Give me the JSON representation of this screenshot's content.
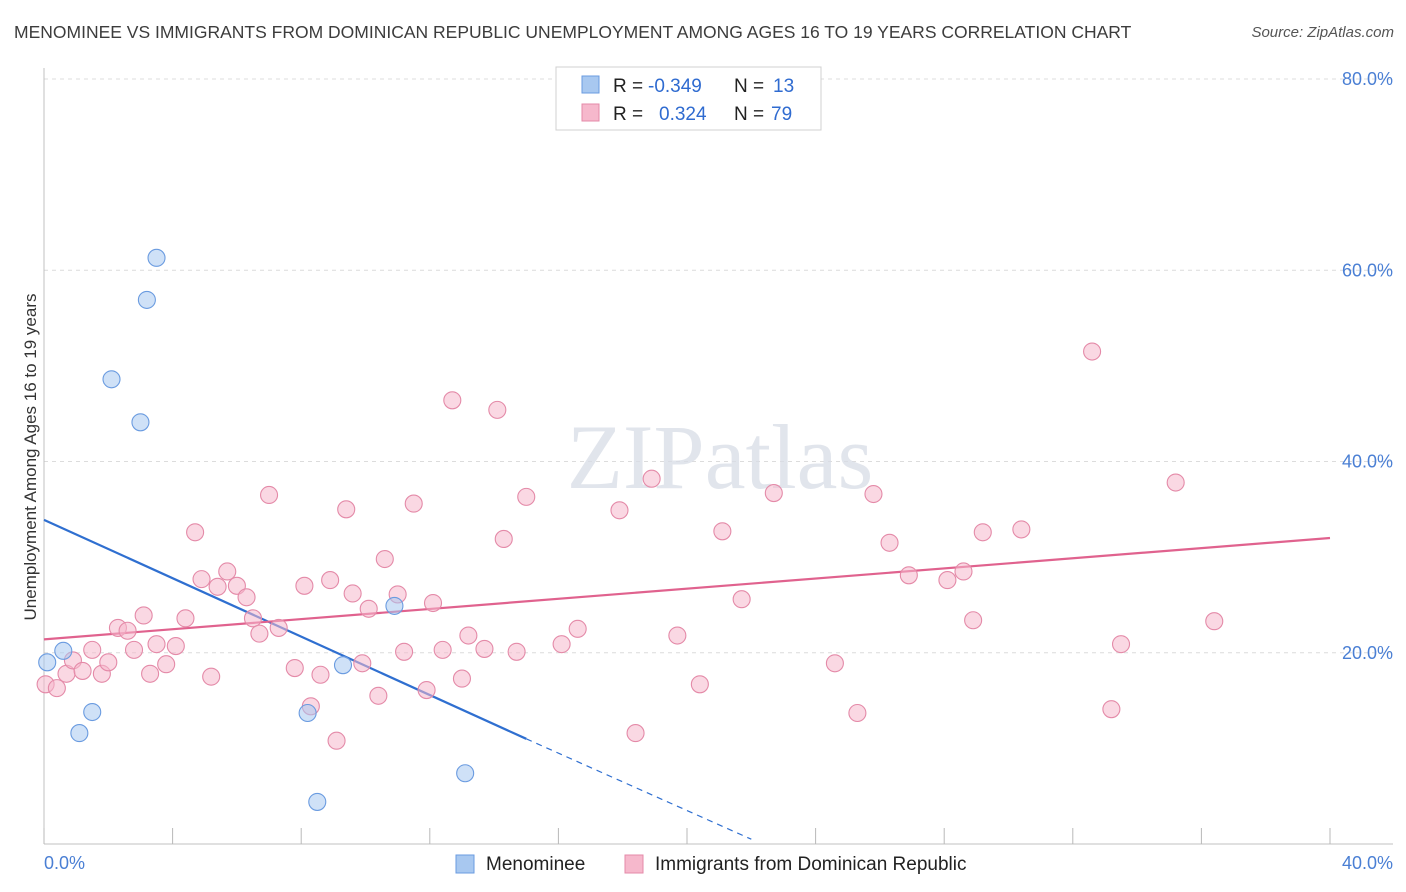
{
  "chart_data": {
    "type": "scatter",
    "title": "MENOMINEE VS IMMIGRANTS FROM DOMINICAN REPUBLIC UNEMPLOYMENT AMONG AGES 16 TO 19 YEARS CORRELATION CHART",
    "source": "Source: ZipAtlas.com",
    "ylabel": "Unemployment Among Ages 16 to 19 years",
    "xlabel": "",
    "xlim": [
      0,
      40
    ],
    "ylim": [
      0,
      80
    ],
    "x_tick_labels": [
      "0.0%",
      "40.0%"
    ],
    "y_ticks": [
      20,
      40,
      60,
      80
    ],
    "y_tick_labels": [
      "20.0%",
      "40.0%",
      "60.0%",
      "80.0%"
    ],
    "watermark": "ZIPatlas",
    "legend": {
      "r_label": "R =",
      "n_label": "N =",
      "entries": [
        {
          "name": "Menominee",
          "r": "-0.349",
          "n": "13"
        },
        {
          "name": "Immigrants from Dominican Republic",
          "r": "0.324",
          "n": "79"
        }
      ]
    },
    "series": [
      {
        "name": "Menominee",
        "color": "#a8c8f0",
        "edge": "#6a9be0",
        "line_color": "#2f6fd0",
        "trend": {
          "x0": 0,
          "y0": 33.9,
          "x1": 15,
          "y1": 11.0,
          "dash_to_x": 22.0,
          "dash_to_y": 0.5
        },
        "points": [
          {
            "x": 0.1,
            "y": 19.0
          },
          {
            "x": 0.6,
            "y": 20.2
          },
          {
            "x": 1.1,
            "y": 11.6
          },
          {
            "x": 1.5,
            "y": 13.8
          },
          {
            "x": 2.1,
            "y": 48.6
          },
          {
            "x": 3.0,
            "y": 44.1
          },
          {
            "x": 3.2,
            "y": 56.9
          },
          {
            "x": 3.5,
            "y": 61.3
          },
          {
            "x": 8.2,
            "y": 13.7
          },
          {
            "x": 8.5,
            "y": 4.4
          },
          {
            "x": 9.3,
            "y": 18.7
          },
          {
            "x": 10.9,
            "y": 24.9
          },
          {
            "x": 13.1,
            "y": 7.4
          }
        ]
      },
      {
        "name": "Immigrants from Dominican Republic",
        "color": "#f6b8cc",
        "edge": "#e48aa8",
        "line_color": "#e0628e",
        "trend": {
          "x0": 0,
          "y0": 21.4,
          "x1": 40,
          "y1": 32.0
        },
        "points": [
          {
            "x": 0.05,
            "y": 16.7
          },
          {
            "x": 0.4,
            "y": 16.3
          },
          {
            "x": 0.7,
            "y": 17.8
          },
          {
            "x": 0.9,
            "y": 19.2
          },
          {
            "x": 1.2,
            "y": 18.1
          },
          {
            "x": 1.5,
            "y": 20.3
          },
          {
            "x": 1.8,
            "y": 17.8
          },
          {
            "x": 2.0,
            "y": 19.0
          },
          {
            "x": 2.3,
            "y": 22.6
          },
          {
            "x": 2.6,
            "y": 22.3
          },
          {
            "x": 2.8,
            "y": 20.3
          },
          {
            "x": 3.1,
            "y": 23.9
          },
          {
            "x": 3.3,
            "y": 17.8
          },
          {
            "x": 3.5,
            "y": 20.9
          },
          {
            "x": 3.8,
            "y": 18.8
          },
          {
            "x": 4.1,
            "y": 20.7
          },
          {
            "x": 4.4,
            "y": 23.6
          },
          {
            "x": 4.7,
            "y": 32.6
          },
          {
            "x": 4.9,
            "y": 27.7
          },
          {
            "x": 5.2,
            "y": 17.5
          },
          {
            "x": 5.4,
            "y": 26.9
          },
          {
            "x": 5.7,
            "y": 28.5
          },
          {
            "x": 6.0,
            "y": 27.0
          },
          {
            "x": 6.3,
            "y": 25.8
          },
          {
            "x": 6.5,
            "y": 23.6
          },
          {
            "x": 6.7,
            "y": 22.0
          },
          {
            "x": 7.0,
            "y": 36.5
          },
          {
            "x": 7.3,
            "y": 22.6
          },
          {
            "x": 7.8,
            "y": 18.4
          },
          {
            "x": 8.1,
            "y": 27.0
          },
          {
            "x": 8.3,
            "y": 14.4
          },
          {
            "x": 8.6,
            "y": 17.7
          },
          {
            "x": 8.9,
            "y": 27.6
          },
          {
            "x": 9.1,
            "y": 10.8
          },
          {
            "x": 9.4,
            "y": 35.0
          },
          {
            "x": 9.6,
            "y": 26.2
          },
          {
            "x": 9.9,
            "y": 18.9
          },
          {
            "x": 10.1,
            "y": 24.6
          },
          {
            "x": 10.4,
            "y": 15.5
          },
          {
            "x": 10.6,
            "y": 29.8
          },
          {
            "x": 11.0,
            "y": 26.1
          },
          {
            "x": 11.2,
            "y": 20.1
          },
          {
            "x": 11.5,
            "y": 35.6
          },
          {
            "x": 11.9,
            "y": 16.1
          },
          {
            "x": 12.1,
            "y": 25.2
          },
          {
            "x": 12.4,
            "y": 20.3
          },
          {
            "x": 12.7,
            "y": 46.4
          },
          {
            "x": 13.0,
            "y": 17.3
          },
          {
            "x": 13.2,
            "y": 21.8
          },
          {
            "x": 13.7,
            "y": 20.4
          },
          {
            "x": 14.1,
            "y": 45.4
          },
          {
            "x": 14.3,
            "y": 31.9
          },
          {
            "x": 14.7,
            "y": 20.1
          },
          {
            "x": 15.0,
            "y": 36.3
          },
          {
            "x": 16.1,
            "y": 20.9
          },
          {
            "x": 16.6,
            "y": 22.5
          },
          {
            "x": 17.9,
            "y": 34.9
          },
          {
            "x": 18.4,
            "y": 11.6
          },
          {
            "x": 18.9,
            "y": 38.2
          },
          {
            "x": 19.7,
            "y": 21.8
          },
          {
            "x": 20.4,
            "y": 16.7
          },
          {
            "x": 21.1,
            "y": 32.7
          },
          {
            "x": 21.7,
            "y": 25.6
          },
          {
            "x": 22.7,
            "y": 36.7
          },
          {
            "x": 24.6,
            "y": 18.9
          },
          {
            "x": 25.3,
            "y": 13.7
          },
          {
            "x": 25.8,
            "y": 36.6
          },
          {
            "x": 26.3,
            "y": 31.5
          },
          {
            "x": 26.9,
            "y": 28.1
          },
          {
            "x": 28.1,
            "y": 27.6
          },
          {
            "x": 28.6,
            "y": 28.5
          },
          {
            "x": 28.9,
            "y": 23.4
          },
          {
            "x": 29.2,
            "y": 32.6
          },
          {
            "x": 30.4,
            "y": 32.9
          },
          {
            "x": 32.6,
            "y": 51.5
          },
          {
            "x": 33.2,
            "y": 14.1
          },
          {
            "x": 33.5,
            "y": 20.9
          },
          {
            "x": 35.2,
            "y": 37.8
          },
          {
            "x": 36.4,
            "y": 23.3
          }
        ]
      }
    ]
  }
}
